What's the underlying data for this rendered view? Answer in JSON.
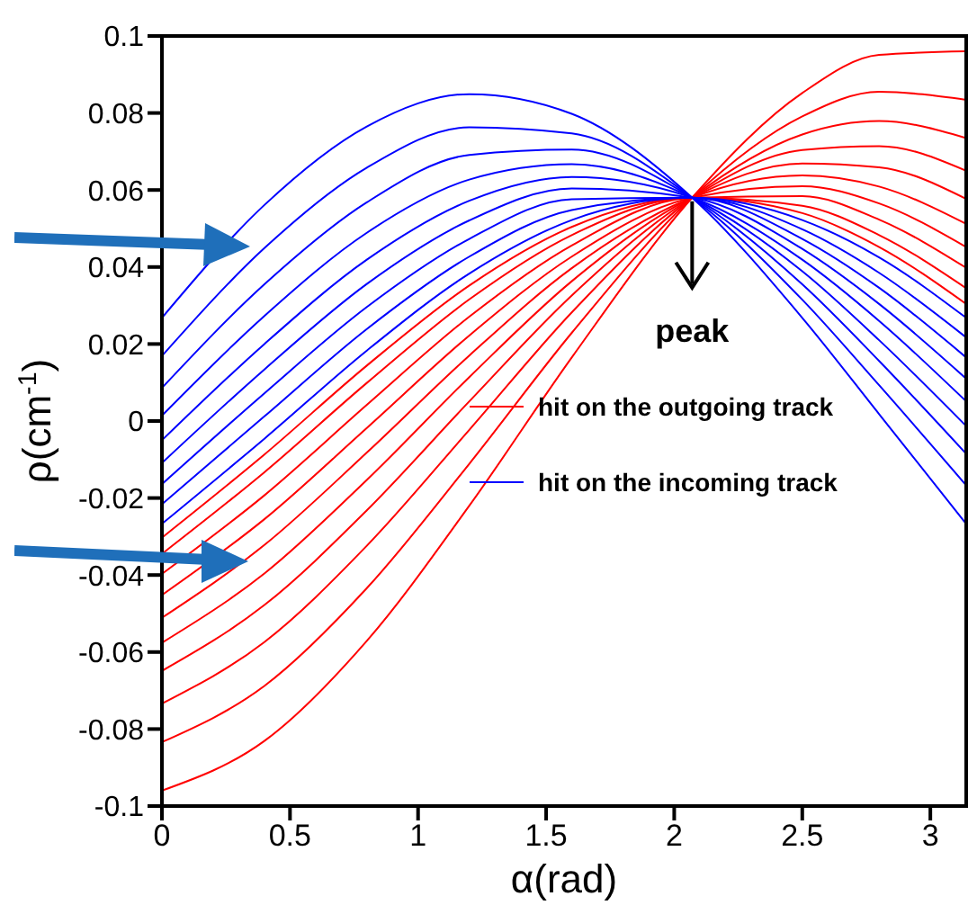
{
  "chart_data": {
    "type": "line",
    "xlabel": "α(rad)",
    "ylabel": "ρ(cm$^{-1}$)",
    "xlim": [
      0,
      3.14
    ],
    "xticks": [
      0,
      0.5,
      1,
      1.5,
      2,
      2.5,
      3
    ],
    "ylim": [
      -0.1,
      0.1
    ],
    "yticks": [
      -0.1,
      -0.08,
      -0.06,
      -0.04,
      -0.02,
      0,
      0.02,
      0.04,
      0.06,
      0.08,
      0.1
    ],
    "legend": "bottom right",
    "annotations": [
      {
        "text": "peak",
        "x": 2.07,
        "y": 0.058
      }
    ],
    "series": [
      {
        "name": "hit on the outgoing track",
        "color": "#ff0000",
        "x": [
          0,
          0.4,
          0.8,
          1.2,
          1.6,
          2.07,
          2.5,
          2.8,
          3.14
        ],
        "values": [
          -0.0303,
          -0.0087,
          0.0144,
          0.0352,
          0.0504,
          0.058,
          0.054,
          0.0452,
          0.0304
        ]
      },
      {
        "color": "#ff0000",
        "x": [
          0,
          0.4,
          0.8,
          1.2,
          1.6,
          2.07,
          2.5,
          2.8,
          3.14
        ],
        "values": [
          -0.0345,
          -0.0133,
          0.0099,
          0.0316,
          0.0483,
          0.058,
          0.0559,
          0.0483,
          0.0345
        ]
      },
      {
        "color": "#ff0000",
        "x": [
          0,
          0.4,
          0.8,
          1.2,
          1.6,
          2.07,
          2.5,
          2.8,
          3.14
        ],
        "values": [
          -0.0397,
          -0.0193,
          0.0042,
          0.0271,
          0.0456,
          0.058,
          0.0584,
          0.0523,
          0.0398
        ]
      },
      {
        "color": "#ff0000",
        "x": [
          0,
          0.4,
          0.8,
          1.2,
          1.6,
          2.07,
          2.5,
          2.8,
          3.14
        ],
        "values": [
          -0.0452,
          -0.0255,
          -0.0018,
          0.0222,
          0.0427,
          0.058,
          0.061,
          0.0565,
          0.0452
        ]
      },
      {
        "color": "#ff0000",
        "x": [
          0,
          0.4,
          0.8,
          1.2,
          1.6,
          2.07,
          2.5,
          2.8,
          3.14
        ],
        "values": [
          -0.0511,
          -0.0322,
          -0.0082,
          0.017,
          0.0397,
          0.058,
          0.0638,
          0.0609,
          0.0512
        ]
      },
      {
        "color": "#ff0000",
        "x": [
          0,
          0.4,
          0.8,
          1.2,
          1.6,
          2.07,
          2.5,
          2.8,
          3.14
        ],
        "values": [
          -0.0576,
          -0.0396,
          -0.0153,
          0.0114,
          0.0363,
          0.058,
          0.0669,
          0.0659,
          0.0577
        ]
      },
      {
        "color": "#ff0000",
        "x": [
          0,
          0.4,
          0.8,
          1.2,
          1.6,
          2.07,
          2.5,
          2.8,
          3.14
        ],
        "values": [
          -0.0649,
          -0.0478,
          -0.0232,
          0.0051,
          0.0326,
          0.058,
          0.0704,
          0.0714,
          0.065
        ]
      },
      {
        "color": "#ff0000",
        "x": [
          0,
          0.4,
          0.8,
          1.2,
          1.6,
          2.07,
          2.5,
          2.8,
          3.14
        ],
        "values": [
          -0.0734,
          -0.0574,
          -0.0324,
          -0.0023,
          0.0282,
          0.058,
          0.0744,
          0.0779,
          0.0735
        ]
      },
      {
        "color": "#ff0000",
        "x": [
          0,
          0.4,
          0.8,
          1.2,
          1.6,
          2.07,
          2.5,
          2.8,
          3.14
        ],
        "values": [
          -0.0834,
          -0.0688,
          -0.0434,
          -0.0111,
          0.0229,
          0.058,
          0.0791,
          0.0855,
          0.0834
        ]
      },
      {
        "color": "#ff0000",
        "x": [
          0,
          0.4,
          0.8,
          1.2,
          1.6,
          2.07,
          2.5,
          2.8,
          3.14
        ],
        "values": [
          -0.096,
          -0.0831,
          -0.0571,
          -0.022,
          0.0165,
          0.058,
          0.0852,
          0.0951,
          0.096
        ]
      },
      {
        "name": "hit on the incoming track",
        "color": "#0000ff",
        "x": [
          0,
          0.4,
          0.8,
          1.2,
          1.6,
          2.07,
          2.5,
          2.8,
          3.14
        ],
        "values": [
          0.0268,
          0.0561,
          0.0765,
          0.0849,
          0.0798,
          0.058,
          0.0268,
          0.0018,
          -0.0267
        ]
      },
      {
        "color": "#0000ff",
        "x": [
          0,
          0.4,
          0.8,
          1.2,
          1.6,
          2.07,
          2.5,
          2.8,
          3.14
        ],
        "values": [
          0.0169,
          0.0449,
          0.0658,
          0.0763,
          0.0747,
          0.058,
          0.0315,
          0.0093,
          -0.0167
        ]
      },
      {
        "color": "#0000ff",
        "x": [
          0,
          0.4,
          0.8,
          1.2,
          1.6,
          2.07,
          2.5,
          2.8,
          3.14
        ],
        "values": [
          0.0086,
          0.0355,
          0.0568,
          0.0691,
          0.0705,
          0.058,
          0.0355,
          0.0156,
          -0.0085
        ]
      },
      {
        "color": "#0000ff",
        "x": [
          0,
          0.4,
          0.8,
          1.2,
          1.6,
          2.07,
          2.5,
          2.8,
          3.14
        ],
        "values": [
          0.0014,
          0.0273,
          0.0489,
          0.0627,
          0.0667,
          0.058,
          0.0389,
          0.021,
          -0.0013
        ]
      },
      {
        "color": "#0000ff",
        "x": [
          0,
          0.4,
          0.8,
          1.2,
          1.6,
          2.07,
          2.5,
          2.8,
          3.14
        ],
        "values": [
          -0.005,
          0.02,
          0.0419,
          0.0572,
          0.0634,
          0.058,
          0.0419,
          0.026,
          0.0051
        ]
      },
      {
        "color": "#0000ff",
        "x": [
          0,
          0.4,
          0.8,
          1.2,
          1.6,
          2.07,
          2.5,
          2.8,
          3.14
        ],
        "values": [
          -0.0109,
          0.0134,
          0.0356,
          0.0521,
          0.0604,
          0.058,
          0.0447,
          0.0304,
          0.011
        ]
      },
      {
        "color": "#0000ff",
        "x": [
          0,
          0.4,
          0.8,
          1.2,
          1.6,
          2.07,
          2.5,
          2.8,
          3.14
        ],
        "values": [
          -0.0164,
          0.0072,
          0.0296,
          0.0473,
          0.0576,
          0.058,
          0.0473,
          0.0346,
          0.0165
        ]
      },
      {
        "color": "#0000ff",
        "x": [
          0,
          0.4,
          0.8,
          1.2,
          1.6,
          2.07,
          2.5,
          2.8,
          3.14
        ],
        "values": [
          -0.0216,
          0.0012,
          0.0239,
          0.0427,
          0.0548,
          0.058,
          0.0498,
          0.0385,
          0.0217
        ]
      },
      {
        "color": "#0000ff",
        "x": [
          0,
          0.4,
          0.8,
          1.2,
          1.6,
          2.07,
          2.5,
          2.8,
          3.14
        ],
        "values": [
          -0.0267,
          -0.0046,
          0.0183,
          0.0383,
          0.0522,
          0.058,
          0.0522,
          0.0425,
          0.0268
        ]
      }
    ]
  }
}
